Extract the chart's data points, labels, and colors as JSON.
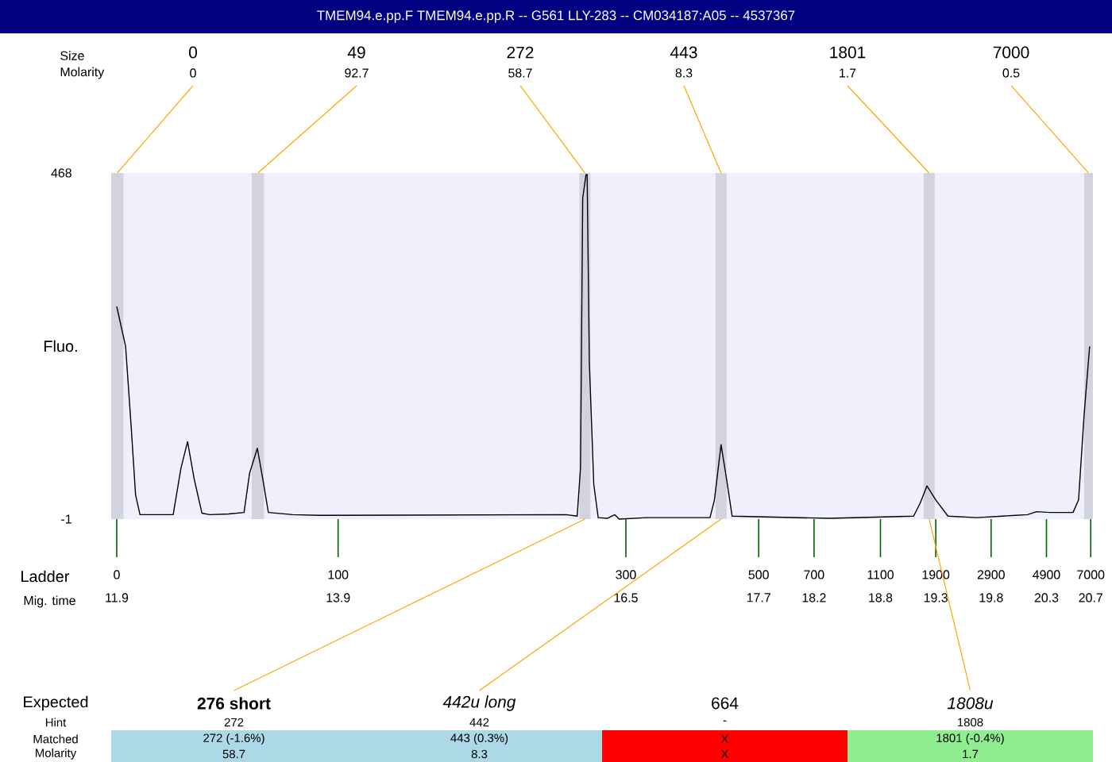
{
  "chart_data": [
    {
      "type": "line",
      "title": "TMEM94.e.pp.F  TMEM94.e.pp.R -- G561 LLY-283 -- CM034187:A05 -- 4537367",
      "xlabel": "Mig. time",
      "ylabel": "Fluo.",
      "xlim": [
        11.85,
        20.72
      ],
      "ylim": [
        -1,
        468
      ],
      "xticks": [
        11.9,
        13.9,
        16.5,
        17.7,
        18.2,
        18.8,
        19.3,
        19.8,
        20.3,
        20.7
      ],
      "yticks": [
        -1,
        468
      ],
      "series": [
        {
          "color": "#000000",
          "x": [
            11.9,
            11.98,
            12.03,
            12.07,
            12.11,
            12.41,
            12.48,
            12.54,
            12.6,
            12.67,
            12.74,
            12.91,
            13.05,
            13.1,
            13.17,
            13.22,
            13.27,
            13.49,
            13.73,
            15.96,
            16.06,
            16.09,
            16.11,
            16.14,
            16.15,
            16.17,
            16.21,
            16.25,
            16.33,
            16.4,
            16.44,
            16.69,
            17.26,
            17.3,
            17.36,
            17.41,
            17.46,
            18.34,
            19.1,
            19.16,
            19.22,
            19.3,
            19.41,
            19.67,
            19.9,
            20.13,
            20.21,
            20.33,
            20.54,
            20.59,
            20.64,
            20.69
          ],
          "values": [
            287,
            233,
            125,
            32,
            5,
            5,
            68,
            104,
            53,
            7,
            5,
            6,
            8,
            61,
            95,
            53,
            8,
            5,
            4,
            5,
            3,
            68,
            434,
            466,
            466,
            211,
            46,
            1,
            0,
            5,
            -1,
            1,
            1,
            25,
            100,
            53,
            3,
            0,
            3,
            21,
            44,
            25,
            3,
            1,
            3,
            5,
            9,
            8,
            8,
            25,
            140,
            233
          ]
        }
      ],
      "bands": [
        {
          "axis": "x",
          "from": 11.85,
          "to": 11.96,
          "color": "#d3d3e0"
        },
        {
          "axis": "x",
          "from": 13.12,
          "to": 13.23,
          "color": "#d3d3e0"
        },
        {
          "axis": "x",
          "from": 16.08,
          "to": 16.18,
          "color": "#d3d3e0"
        },
        {
          "axis": "x",
          "from": 17.31,
          "to": 17.41,
          "color": "#d3d3e0"
        },
        {
          "axis": "x",
          "from": 19.19,
          "to": 19.29,
          "color": "#d3d3e0"
        },
        {
          "axis": "x",
          "from": 20.64,
          "to": 20.72,
          "color": "#d3d3e0"
        }
      ],
      "annotations": [
        "Size",
        "Molarity",
        "Ladder",
        "0",
        "0",
        "49",
        "92.7",
        "272",
        "58.7",
        "443",
        "8.3",
        "1801",
        "1.7",
        "7000",
        "0.5",
        {
          "text": "0",
          "x": 11.9,
          "y": -1
        },
        {
          "text": "100",
          "x": 13.9,
          "y": -1
        },
        {
          "text": "300",
          "x": 16.5,
          "y": -1
        },
        {
          "text": "500",
          "x": 17.7,
          "y": -1
        },
        {
          "text": "700",
          "x": 18.2,
          "y": -1
        },
        {
          "text": "1100",
          "x": 18.8,
          "y": -1
        },
        {
          "text": "1900",
          "x": 19.3,
          "y": -1
        },
        {
          "text": "2900",
          "x": 19.8,
          "y": -1
        },
        {
          "text": "4900",
          "x": 20.3,
          "y": -1
        },
        {
          "text": "7000",
          "x": 20.7,
          "y": -1
        }
      ]
    },
    {
      "type": "other",
      "annotations": [
        "Expected",
        "Hint",
        "Matched",
        "Molarity",
        "276 short",
        "272",
        "272 (-1.6%)",
        "58.7",
        "442u long",
        "442",
        "443 (0.3%)",
        "8.3",
        "664",
        "-",
        "X",
        "X",
        "1808u",
        "1808",
        "1801 (-0.4%)",
        "1.7"
      ]
    }
  ]
}
